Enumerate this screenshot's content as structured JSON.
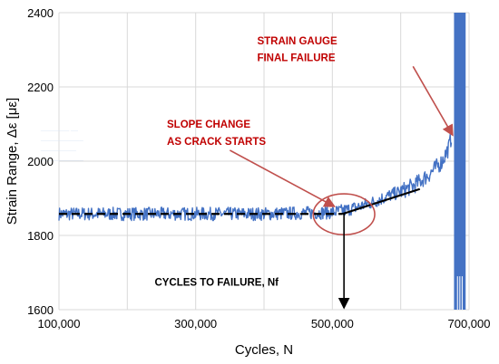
{
  "chart_data": {
    "type": "line",
    "xlabel": "Cycles, N",
    "ylabel": "Strain Range, Δε [με]",
    "xlim": [
      100000,
      700000
    ],
    "ylim": [
      1600,
      2400
    ],
    "x_ticks": [
      100000,
      200000,
      300000,
      400000,
      500000,
      600000,
      700000
    ],
    "x_tick_labels": [
      "100,000",
      "300,000",
      "500,000",
      "700,000"
    ],
    "x_tick_label_values": [
      100000,
      300000,
      500000,
      700000
    ],
    "y_ticks": [
      1600,
      1800,
      2000,
      2200,
      2400
    ],
    "y_tick_labels": [
      "1600",
      "1800",
      "2000",
      "2200",
      "2400"
    ],
    "grid": true,
    "series": [
      {
        "color": "#4472c4",
        "style": "noisy measured signal",
        "x": [
          100000,
          200000,
          300000,
          400000,
          450000,
          500000,
          520000,
          540000,
          560000,
          580000,
          600000,
          620000,
          640000,
          660000,
          670000,
          675000
        ],
        "y": [
          1858,
          1858,
          1858,
          1858,
          1860,
          1862,
          1868,
          1878,
          1890,
          1905,
          1918,
          1935,
          1962,
          1998,
          2035,
          2070
        ],
        "noise_amplitude": 18,
        "failure_band": {
          "x_from": 678000,
          "x_to": 695000,
          "y_from": 1600,
          "y_to": 2400
        }
      }
    ],
    "fit_lines": [
      {
        "style": "dashed",
        "color": "#000000",
        "x": [
          100000,
          515000
        ],
        "y": [
          1858,
          1858
        ]
      },
      {
        "style": "solid",
        "color": "#000000",
        "x": [
          515000,
          628000
        ],
        "y": [
          1858,
          1925
        ]
      }
    ],
    "annotations": [
      {
        "lines": [
          "STRAIN GAUGE",
          "FINAL FAILURE"
        ],
        "color": "#c00000",
        "text_x": 390000,
        "text_y": [
          2315,
          2270
        ],
        "arrow_to": [
          676000,
          2070
        ]
      },
      {
        "lines": [
          "SLOPE CHANGE",
          "AS CRACK STARTS"
        ],
        "color": "#c00000",
        "text_x": 258000,
        "text_y": [
          2090,
          2044
        ],
        "arrow_to": [
          503000,
          1878
        ]
      },
      {
        "lines": [
          "CYCLES TO FAILURE, Nf"
        ],
        "color": "#000000",
        "text_x": 240000,
        "text_y": [
          1665
        ],
        "arrow_from": [
          517000,
          1858
        ],
        "arrow_to": [
          517000,
          1600
        ]
      }
    ],
    "circle": {
      "cx": 517000,
      "cy": 1857,
      "rx": 45000,
      "ry": 55
    },
    "ghost_text": [
      "________ __",
      "____________",
      "__________",
      "____________"
    ]
  }
}
